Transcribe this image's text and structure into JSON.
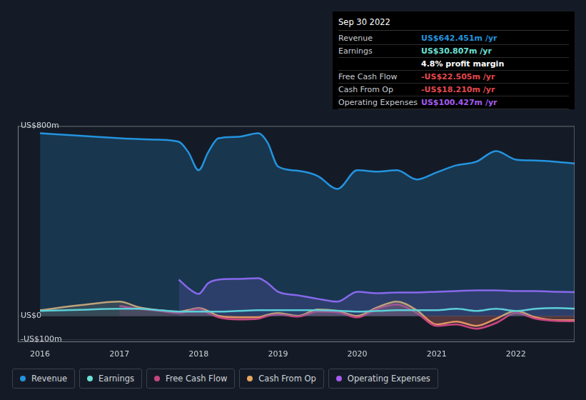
{
  "chart_data": {
    "type": "line",
    "x": [
      2016,
      2016.5,
      2017,
      2017.25,
      2017.5,
      2017.75,
      2017.87,
      2018,
      2018.12,
      2018.25,
      2018.5,
      2018.75,
      2018.87,
      2019,
      2019.25,
      2019.5,
      2019.75,
      2020,
      2020.25,
      2020.5,
      2020.75,
      2021,
      2021.25,
      2021.5,
      2021.75,
      2022,
      2022.25,
      2022.5,
      2022.74
    ],
    "series": [
      {
        "name": "Revenue",
        "color": "#2394df",
        "values": [
          770,
          760,
          749,
          745,
          743,
          734,
          690,
          614,
          690,
          749,
          755,
          770,
          730,
          630,
          612,
          590,
          535,
          614,
          608,
          614,
          575,
          605,
          635,
          650,
          695,
          659,
          655,
          650,
          642.451
        ]
      },
      {
        "name": "Earnings",
        "color": "#6ce0d6",
        "values": [
          21,
          26,
          30,
          30,
          24,
          18,
          18,
          18,
          18,
          18,
          21,
          24,
          24,
          24,
          24,
          24,
          22,
          18,
          21,
          24,
          24,
          24,
          30,
          21,
          30,
          21,
          30,
          33,
          30.807
        ]
      },
      {
        "name": "Free Cash Flow",
        "color": "#c4467f",
        "values": [
          null,
          null,
          42,
          30,
          21,
          12,
          20,
          30,
          12,
          -6,
          -15,
          -12,
          0,
          6,
          -3,
          18,
          15,
          -6,
          30,
          48,
          12,
          -42,
          -36,
          -54,
          -30,
          12,
          -12,
          -21,
          -22.505
        ]
      },
      {
        "name": "Cash From Op",
        "color": "#e8a65e",
        "values": [
          24,
          45,
          60,
          36,
          24,
          18,
          25,
          33,
          21,
          0,
          -6,
          -6,
          5,
          12,
          0,
          27,
          21,
          0,
          36,
          60,
          24,
          -36,
          -24,
          -42,
          -12,
          21,
          -6,
          -18,
          -18.21
        ]
      },
      {
        "name": "Operating Expenses",
        "color": "#a55cf0",
        "values": [
          null,
          null,
          null,
          null,
          null,
          153,
          117,
          93,
          138,
          153,
          156,
          159,
          138,
          102,
          87,
          72,
          60,
          102,
          96,
          99,
          99,
          102,
          105,
          108,
          108,
          105,
          105,
          102,
          100.427
        ]
      }
    ],
    "xlim": [
      2015.72,
      2022.74
    ],
    "xticks": [
      2016,
      2017,
      2018,
      2019,
      2020,
      2021,
      2022
    ],
    "ylim": [
      -110,
      800
    ],
    "yticks": [
      {
        "value": -100,
        "label": "-US$100m"
      },
      {
        "value": 0,
        "label": "US$0"
      },
      {
        "value": 800,
        "label": "US$800m"
      }
    ],
    "grid": true,
    "legend": "bottom",
    "annotations": {
      "title": "Sep 30 2022",
      "rows": [
        {
          "label": "Revenue",
          "value": "US$642.451m /yr",
          "color": "#2394df"
        },
        {
          "label": "Earnings",
          "value": "US$30.807m /yr",
          "color": "#6ce0d6"
        },
        {
          "value": "4.8% profit margin",
          "color": "#ffffff"
        },
        {
          "label": "Free Cash Flow",
          "value": "-US$22.505m /yr",
          "color": "#e5484d"
        },
        {
          "label": "Cash From Op",
          "value": "-US$18.210m /yr",
          "color": "#e5484d"
        },
        {
          "label": "Operating Expenses",
          "value": "US$100.427m /yr",
          "color": "#a55cf0"
        }
      ]
    }
  }
}
